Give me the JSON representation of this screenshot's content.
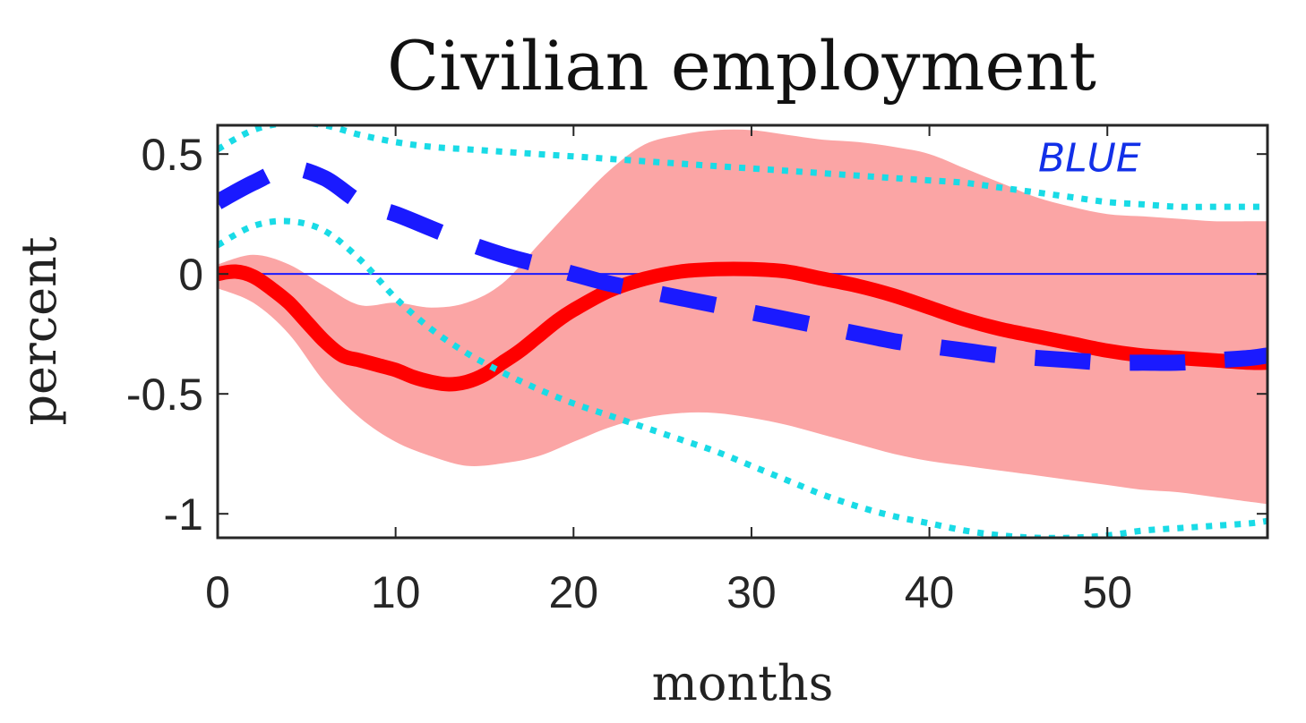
{
  "chart_data": {
    "type": "line",
    "title": "Civilian employment",
    "xlabel": "months",
    "ylabel": "percent",
    "xlim": [
      0,
      59
    ],
    "ylim": [
      -1.1,
      0.62
    ],
    "x_ticks": [
      0,
      10,
      20,
      30,
      40,
      50
    ],
    "x_tick_labels": [
      "0",
      "10",
      "20",
      "30",
      "40",
      "50"
    ],
    "y_ticks": [
      0.5,
      0,
      -0.5,
      -1
    ],
    "y_tick_labels": [
      "0.5",
      "0",
      "-0.5",
      "-1"
    ],
    "grid": false,
    "legend": "none",
    "annotations": [
      {
        "text": "BLUE",
        "x": 49,
        "y": 0.48
      }
    ],
    "zero_line": {
      "y": 0,
      "color": "#1a1aff"
    },
    "series": [
      {
        "kind": "band",
        "color": "#fba5a5",
        "x": [
          0,
          2,
          4,
          6,
          8,
          10,
          12,
          14,
          16,
          18,
          20,
          22,
          24,
          26,
          28,
          30,
          32,
          34,
          36,
          38,
          40,
          42,
          44,
          46,
          48,
          50,
          52,
          54,
          56,
          58,
          59
        ],
        "upper": [
          0.04,
          0.08,
          0.04,
          -0.05,
          -0.13,
          -0.12,
          -0.14,
          -0.12,
          -0.04,
          0.12,
          0.28,
          0.43,
          0.54,
          0.58,
          0.6,
          0.6,
          0.58,
          0.56,
          0.55,
          0.53,
          0.5,
          0.44,
          0.38,
          0.32,
          0.28,
          0.25,
          0.24,
          0.23,
          0.22,
          0.22,
          0.22
        ],
        "lower": [
          -0.06,
          -0.12,
          -0.25,
          -0.45,
          -0.6,
          -0.7,
          -0.76,
          -0.8,
          -0.79,
          -0.76,
          -0.7,
          -0.64,
          -0.6,
          -0.58,
          -0.58,
          -0.6,
          -0.63,
          -0.67,
          -0.71,
          -0.75,
          -0.78,
          -0.8,
          -0.82,
          -0.84,
          -0.86,
          -0.88,
          -0.9,
          -0.91,
          -0.93,
          -0.95,
          -0.96
        ]
      },
      {
        "kind": "line",
        "style": "solid",
        "color": "#ff0000",
        "x": [
          0,
          1,
          2,
          3,
          4,
          5,
          6,
          7,
          8,
          9,
          10,
          11,
          12,
          13,
          14,
          15,
          16,
          17,
          18,
          19,
          20,
          22,
          24,
          26,
          28,
          30,
          32,
          34,
          36,
          38,
          40,
          42,
          44,
          46,
          48,
          50,
          52,
          54,
          56,
          58,
          59
        ],
        "y": [
          0.0,
          0.01,
          -0.01,
          -0.06,
          -0.12,
          -0.2,
          -0.28,
          -0.34,
          -0.36,
          -0.38,
          -0.4,
          -0.43,
          -0.45,
          -0.46,
          -0.45,
          -0.42,
          -0.37,
          -0.32,
          -0.26,
          -0.2,
          -0.15,
          -0.07,
          -0.02,
          0.01,
          0.02,
          0.02,
          0.01,
          -0.02,
          -0.05,
          -0.09,
          -0.14,
          -0.19,
          -0.23,
          -0.26,
          -0.29,
          -0.32,
          -0.34,
          -0.35,
          -0.36,
          -0.37,
          -0.37
        ]
      },
      {
        "kind": "line",
        "style": "dashed",
        "color": "#1a1aff",
        "x": [
          0,
          2,
          4,
          6,
          8,
          10,
          12,
          14,
          16,
          18,
          20,
          22,
          24,
          26,
          28,
          30,
          32,
          34,
          36,
          38,
          40,
          42,
          44,
          46,
          48,
          50,
          52,
          54,
          56,
          58,
          59
        ],
        "y": [
          0.3,
          0.38,
          0.44,
          0.4,
          0.3,
          0.25,
          0.19,
          0.13,
          0.08,
          0.04,
          0.0,
          -0.04,
          -0.07,
          -0.1,
          -0.13,
          -0.16,
          -0.19,
          -0.22,
          -0.25,
          -0.28,
          -0.3,
          -0.32,
          -0.34,
          -0.35,
          -0.36,
          -0.37,
          -0.37,
          -0.37,
          -0.36,
          -0.35,
          -0.34
        ]
      },
      {
        "kind": "line",
        "style": "dotted",
        "color": "#19dbe6",
        "x": [
          0,
          2,
          4,
          6,
          8,
          10,
          12,
          14,
          16,
          18,
          20,
          22,
          24,
          26,
          28,
          30,
          32,
          34,
          36,
          38,
          40,
          42,
          44,
          46,
          48,
          50,
          52,
          54,
          56,
          58,
          59
        ],
        "y": [
          0.52,
          0.6,
          0.63,
          0.62,
          0.58,
          0.55,
          0.53,
          0.52,
          0.51,
          0.5,
          0.49,
          0.48,
          0.47,
          0.46,
          0.45,
          0.44,
          0.43,
          0.42,
          0.41,
          0.4,
          0.39,
          0.38,
          0.36,
          0.34,
          0.32,
          0.3,
          0.29,
          0.28,
          0.28,
          0.28,
          0.28
        ]
      },
      {
        "kind": "line",
        "style": "dotted",
        "color": "#19dbe6",
        "x": [
          0,
          2,
          4,
          6,
          8,
          10,
          12,
          14,
          16,
          18,
          20,
          22,
          24,
          26,
          28,
          30,
          32,
          34,
          36,
          38,
          40,
          42,
          44,
          46,
          48,
          50,
          52,
          54,
          56,
          58,
          59
        ],
        "y": [
          0.12,
          0.2,
          0.22,
          0.18,
          0.06,
          -0.1,
          -0.23,
          -0.33,
          -0.41,
          -0.48,
          -0.54,
          -0.59,
          -0.64,
          -0.69,
          -0.74,
          -0.8,
          -0.86,
          -0.92,
          -0.97,
          -1.01,
          -1.04,
          -1.07,
          -1.09,
          -1.1,
          -1.1,
          -1.09,
          -1.07,
          -1.06,
          -1.05,
          -1.04,
          -1.03
        ]
      }
    ]
  }
}
